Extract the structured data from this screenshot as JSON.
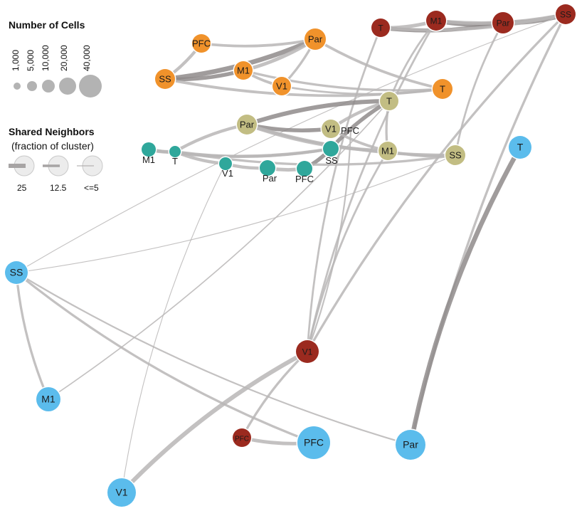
{
  "colors": {
    "orange": "#f0922b",
    "darkred": "#9b2a1f",
    "olive": "#c2bd83",
    "teal": "#2fa79b",
    "blue": "#5bbcec",
    "edge": "#b9b6b6",
    "edge_dark": "#8f8b8b",
    "legend_node": "#b3b3b3"
  },
  "legend": {
    "size_title": "Number of Cells",
    "size_ticks": [
      "1,000",
      "5,000",
      "10,000",
      "20,000",
      "40,000"
    ],
    "edge_title": "Shared Neighbors",
    "edge_subtitle": "(fraction of cluster)",
    "edge_ticks": [
      "25",
      "12.5",
      "<=5"
    ]
  },
  "nodes": [
    {
      "id": "o_pfc",
      "label": "PFC",
      "group": "orange"
    },
    {
      "id": "o_par",
      "label": "Par",
      "group": "orange"
    },
    {
      "id": "o_m1",
      "label": "M1",
      "group": "orange"
    },
    {
      "id": "o_ss",
      "label": "SS",
      "group": "orange"
    },
    {
      "id": "o_v1",
      "label": "V1",
      "group": "orange"
    },
    {
      "id": "o_t",
      "label": "T",
      "group": "orange"
    },
    {
      "id": "r_t",
      "label": "T",
      "group": "darkred"
    },
    {
      "id": "r_m1",
      "label": "M1",
      "group": "darkred"
    },
    {
      "id": "r_par",
      "label": "Par",
      "group": "darkred"
    },
    {
      "id": "r_ss",
      "label": "SS",
      "group": "darkred"
    },
    {
      "id": "r_v1",
      "label": "V1",
      "group": "darkred"
    },
    {
      "id": "r_pfc",
      "label": "PFC",
      "group": "darkred"
    },
    {
      "id": "k_t",
      "label": "T",
      "group": "olive"
    },
    {
      "id": "k_par",
      "label": "Par",
      "group": "olive"
    },
    {
      "id": "k_v1",
      "label": "V1",
      "group": "olive"
    },
    {
      "id": "k_pfc",
      "label": "PFC",
      "group": "olive"
    },
    {
      "id": "k_m1",
      "label": "M1",
      "group": "olive"
    },
    {
      "id": "k_ss",
      "label": "SS",
      "group": "olive"
    },
    {
      "id": "g_m1",
      "label": "M1",
      "group": "teal"
    },
    {
      "id": "g_t",
      "label": "T",
      "group": "teal"
    },
    {
      "id": "g_v1",
      "label": "V1",
      "group": "teal"
    },
    {
      "id": "g_par",
      "label": "Par",
      "group": "teal"
    },
    {
      "id": "g_pfc",
      "label": "PFC",
      "group": "teal"
    },
    {
      "id": "g_ss",
      "label": "SS",
      "group": "teal"
    },
    {
      "id": "b_t",
      "label": "T",
      "group": "blue"
    },
    {
      "id": "b_ss",
      "label": "SS",
      "group": "blue"
    },
    {
      "id": "b_m1",
      "label": "M1",
      "group": "blue"
    },
    {
      "id": "b_pfc",
      "label": "PFC",
      "group": "blue"
    },
    {
      "id": "b_par",
      "label": "Par",
      "group": "blue"
    },
    {
      "id": "b_v1",
      "label": "V1",
      "group": "blue"
    }
  ],
  "edges": [
    {
      "from": "o_ss",
      "to": "o_par",
      "shared": 12
    },
    {
      "from": "o_ss",
      "to": "o_m1",
      "shared": 10
    },
    {
      "from": "o_ss",
      "to": "o_pfc",
      "shared": 8
    },
    {
      "from": "o_ss",
      "to": "o_t",
      "shared": 7
    },
    {
      "from": "o_pfc",
      "to": "o_par",
      "shared": 7
    },
    {
      "from": "o_m1",
      "to": "o_par",
      "shared": 9
    },
    {
      "from": "o_m1",
      "to": "o_v1",
      "shared": 7
    },
    {
      "from": "o_m1",
      "to": "o_t",
      "shared": 6
    },
    {
      "from": "o_v1",
      "to": "o_par",
      "shared": 6
    },
    {
      "from": "o_par",
      "to": "o_t",
      "shared": 7
    },
    {
      "from": "o_v1",
      "to": "o_t",
      "shared": 5
    },
    {
      "from": "r_t",
      "to": "r_m1",
      "shared": 9
    },
    {
      "from": "r_t",
      "to": "r_par",
      "shared": 10
    },
    {
      "from": "r_m1",
      "to": "r_par",
      "shared": 11
    },
    {
      "from": "r_par",
      "to": "r_ss",
      "shared": 12
    },
    {
      "from": "r_m1",
      "to": "r_ss",
      "shared": 9
    },
    {
      "from": "r_t",
      "to": "r_ss",
      "shared": 8
    },
    {
      "from": "r_t",
      "to": "r_v1",
      "shared": 5
    },
    {
      "from": "r_m1",
      "to": "r_v1",
      "shared": 5
    },
    {
      "from": "r_ss",
      "to": "r_v1",
      "shared": 6
    },
    {
      "from": "r_v1",
      "to": "r_pfc",
      "shared": 6
    },
    {
      "from": "r_pfc",
      "to": "b_pfc",
      "shared": 9
    },
    {
      "from": "r_v1",
      "to": "b_v1",
      "shared": 11
    },
    {
      "from": "r_ss",
      "to": "b_ss",
      "shared": 2
    },
    {
      "from": "r_m1",
      "to": "k_t",
      "shared": 5
    },
    {
      "from": "r_par",
      "to": "k_ss",
      "shared": 5
    },
    {
      "from": "r_ss",
      "to": "b_par",
      "shared": 6
    },
    {
      "from": "k_t",
      "to": "k_par",
      "shared": 11
    },
    {
      "from": "k_t",
      "to": "k_v1",
      "shared": 8
    },
    {
      "from": "k_t",
      "to": "k_m1",
      "shared": 6
    },
    {
      "from": "k_t",
      "to": "g_ss",
      "shared": 10
    },
    {
      "from": "k_par",
      "to": "k_v1",
      "shared": 10
    },
    {
      "from": "k_par",
      "to": "k_m1",
      "shared": 9
    },
    {
      "from": "k_par",
      "to": "k_ss",
      "shared": 8
    },
    {
      "from": "k_par",
      "to": "g_t",
      "shared": 8
    },
    {
      "from": "k_v1",
      "to": "k_m1",
      "shared": 7
    },
    {
      "from": "k_m1",
      "to": "k_ss",
      "shared": 7
    },
    {
      "from": "k_m1",
      "to": "r_v1",
      "shared": 5
    },
    {
      "from": "g_m1",
      "to": "g_t",
      "shared": 9
    },
    {
      "from": "g_m1",
      "to": "g_ss",
      "shared": 8
    },
    {
      "from": "g_t",
      "to": "g_v1",
      "shared": 8
    },
    {
      "from": "g_t",
      "to": "g_ss",
      "shared": 7
    },
    {
      "from": "g_v1",
      "to": "g_par",
      "shared": 8
    },
    {
      "from": "g_par",
      "to": "g_pfc",
      "shared": 9
    },
    {
      "from": "g_pfc",
      "to": "g_ss",
      "shared": 10
    },
    {
      "from": "g_v1",
      "to": "b_v1",
      "shared": 2
    },
    {
      "from": "g_t",
      "to": "k_ss",
      "shared": 6
    },
    {
      "from": "b_t",
      "to": "b_par",
      "shared": 12
    },
    {
      "from": "b_ss",
      "to": "b_m1",
      "shared": 6
    },
    {
      "from": "b_ss",
      "to": "b_pfc",
      "shared": 6
    },
    {
      "from": "b_ss",
      "to": "b_par",
      "shared": 4
    },
    {
      "from": "b_ss",
      "to": "k_ss",
      "shared": 2
    },
    {
      "from": "b_m1",
      "to": "k_t",
      "shared": 3
    },
    {
      "from": "r_v1",
      "to": "k_pfc",
      "shared": 4
    }
  ]
}
